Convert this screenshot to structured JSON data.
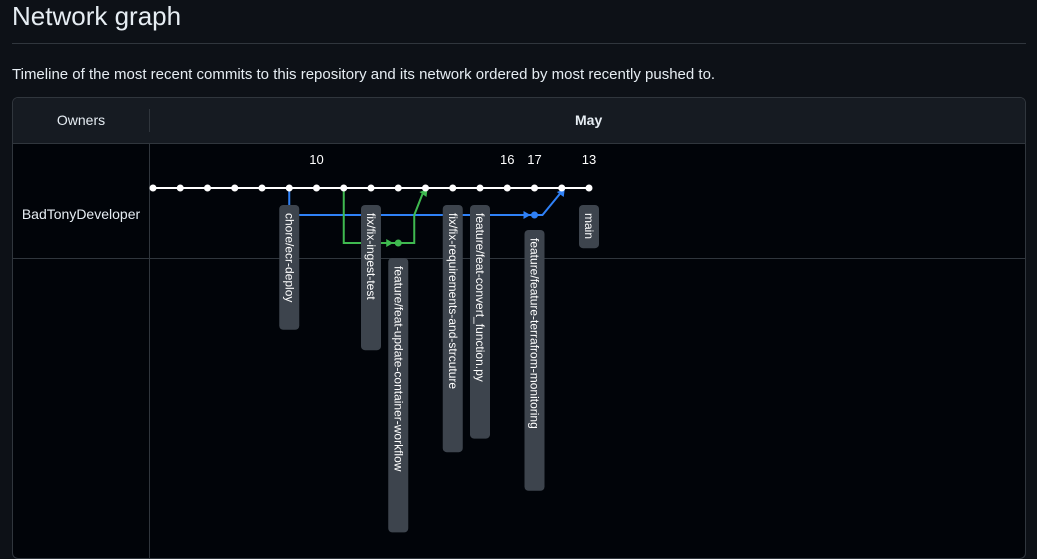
{
  "page": {
    "title": "Network graph",
    "description": "Timeline of the most recent commits to this repository and its network ordered by most recently pushed to."
  },
  "graph": {
    "owners_header": "Owners",
    "month": "May",
    "owner": "BadTonyDeveloper",
    "day_labels": [
      {
        "label": "10",
        "col": 6
      },
      {
        "label": "16",
        "col": 13
      },
      {
        "label": "17",
        "col": 14
      },
      {
        "label": "13",
        "col": 16
      }
    ],
    "commit_count": 17,
    "branches": [
      {
        "name": "chore/ecr-deploy",
        "col": 5,
        "lane": 0
      },
      {
        "name": "fix/fix-ingest-test",
        "col": 8,
        "lane": 0
      },
      {
        "name": "feature/feat-update-container-workflow",
        "col": 9,
        "lane": 2
      },
      {
        "name": "fix/fix-requirements-and-strcuture",
        "col": 11,
        "lane": 0
      },
      {
        "name": "feature/feat-convert_function.py",
        "col": 12,
        "lane": 0
      },
      {
        "name": "feature/feature-terrafrom-monitoring",
        "col": 14,
        "lane": 1
      },
      {
        "name": "main",
        "col": 16,
        "lane": 0
      }
    ],
    "colors": {
      "main_line": "#ffffff",
      "blue_branch": "#2f81f7",
      "green_branch": "#3fb950",
      "label_bg": "#3d444d",
      "label_text": "#ffffff",
      "day_text": "#ffffff"
    }
  }
}
